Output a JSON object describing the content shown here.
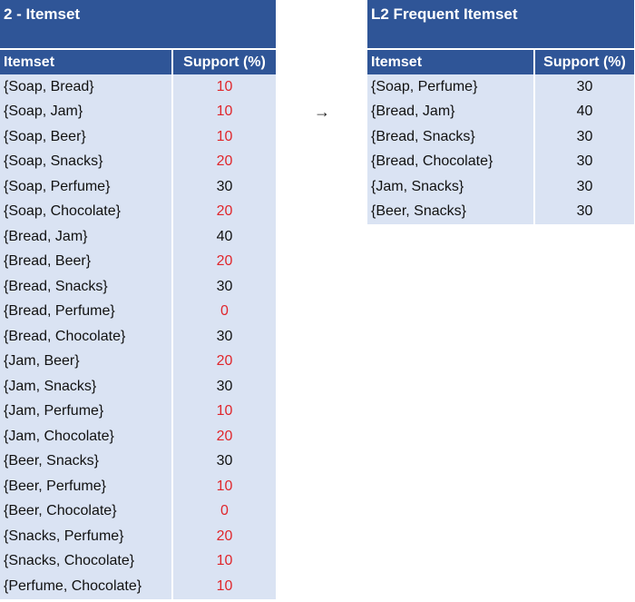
{
  "left_table": {
    "title": "2 - Itemset",
    "headers": [
      "Itemset",
      "Support (%)"
    ],
    "rows": [
      {
        "itemset": "{Soap, Bread}",
        "support": "10",
        "below_threshold": true
      },
      {
        "itemset": "{Soap, Jam}",
        "support": "10",
        "below_threshold": true
      },
      {
        "itemset": "{Soap, Beer}",
        "support": "10",
        "below_threshold": true
      },
      {
        "itemset": "{Soap, Snacks}",
        "support": "20",
        "below_threshold": true
      },
      {
        "itemset": "{Soap, Perfume}",
        "support": "30",
        "below_threshold": false
      },
      {
        "itemset": "{Soap, Chocolate}",
        "support": "20",
        "below_threshold": true
      },
      {
        "itemset": "{Bread, Jam}",
        "support": "40",
        "below_threshold": false
      },
      {
        "itemset": "{Bread, Beer}",
        "support": "20",
        "below_threshold": true
      },
      {
        "itemset": "{Bread, Snacks}",
        "support": "30",
        "below_threshold": false
      },
      {
        "itemset": "{Bread, Perfume}",
        "support": "0",
        "below_threshold": true
      },
      {
        "itemset": "{Bread, Chocolate}",
        "support": "30",
        "below_threshold": false
      },
      {
        "itemset": "{Jam, Beer}",
        "support": "20",
        "below_threshold": true
      },
      {
        "itemset": "{Jam, Snacks}",
        "support": "30",
        "below_threshold": false
      },
      {
        "itemset": "{Jam, Perfume}",
        "support": "10",
        "below_threshold": true
      },
      {
        "itemset": "{Jam, Chocolate}",
        "support": "20",
        "below_threshold": true
      },
      {
        "itemset": "{Beer, Snacks}",
        "support": "30",
        "below_threshold": false
      },
      {
        "itemset": "{Beer, Perfume}",
        "support": "10",
        "below_threshold": true
      },
      {
        "itemset": "{Beer, Chocolate}",
        "support": "0",
        "below_threshold": true
      },
      {
        "itemset": "{Snacks, Perfume}",
        "support": "20",
        "below_threshold": true
      },
      {
        "itemset": "{Snacks, Chocolate}",
        "support": "10",
        "below_threshold": true
      },
      {
        "itemset": "{Perfume, Chocolate}",
        "support": "10",
        "below_threshold": true
      }
    ]
  },
  "arrow": "→",
  "right_table": {
    "title": "L2 Frequent Itemset",
    "headers": [
      "Itemset",
      "Support (%)"
    ],
    "rows": [
      {
        "itemset": "{Soap, Perfume}",
        "support": "30"
      },
      {
        "itemset": "{Bread, Jam}",
        "support": "40"
      },
      {
        "itemset": "{Bread, Snacks}",
        "support": "30"
      },
      {
        "itemset": "{Bread, Chocolate}",
        "support": "30"
      },
      {
        "itemset": "{Jam, Snacks}",
        "support": "30"
      },
      {
        "itemset": "{Beer, Snacks}",
        "support": "30"
      }
    ]
  },
  "colors": {
    "header_bg": "#2f5597",
    "row_bg": "#dae3f3",
    "below_threshold_text": "#e0262b"
  }
}
